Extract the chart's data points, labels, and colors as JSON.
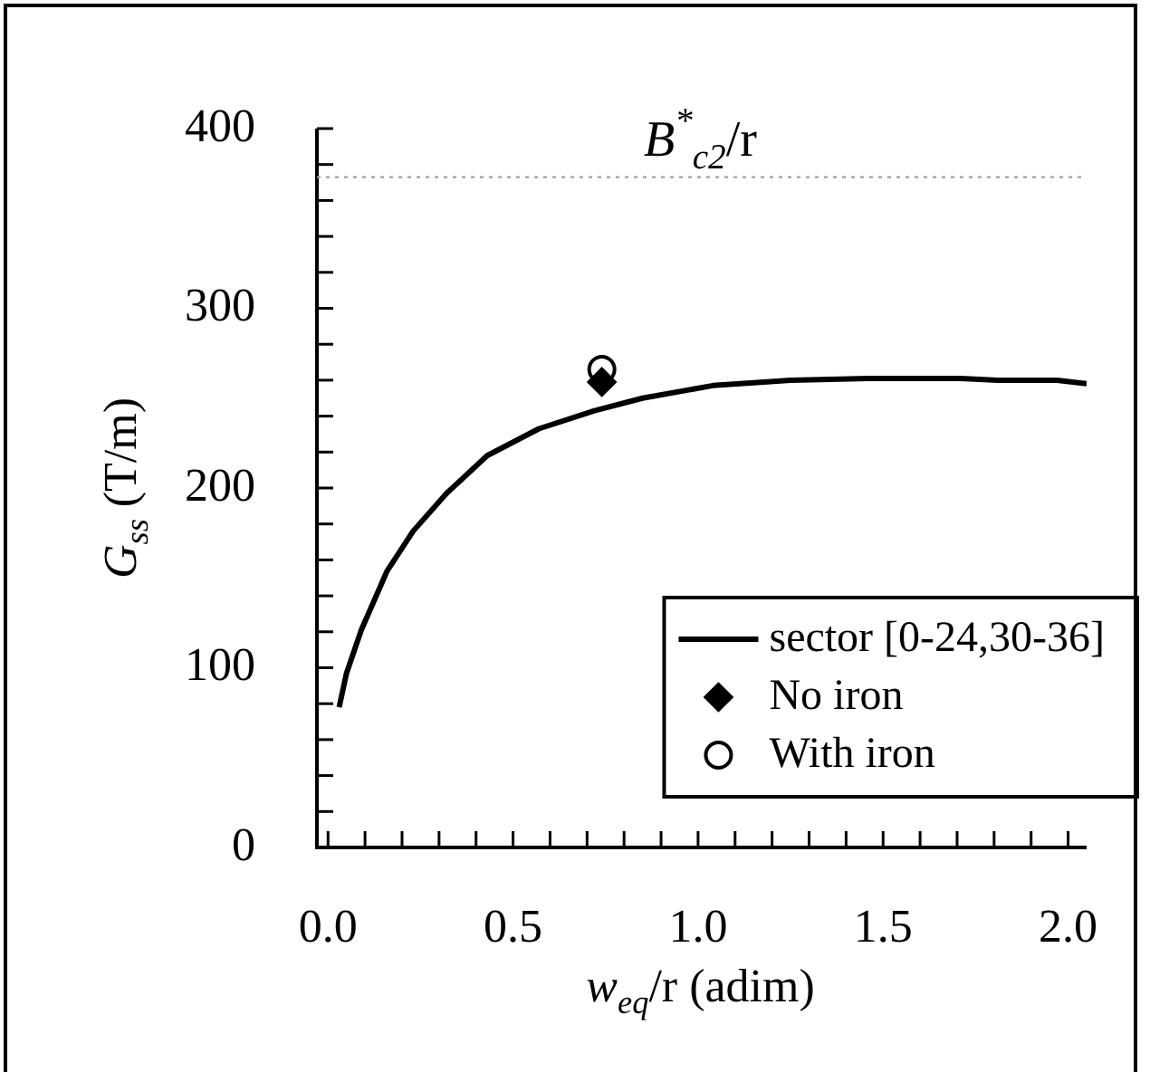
{
  "chart_data": {
    "type": "line",
    "xlabel": "w$_{eq}$/r (adim)",
    "ylabel": "G$_{ss}$ (T/m)",
    "xlim": [
      -0.03,
      2.05
    ],
    "ylim": [
      0,
      400
    ],
    "xticks": [
      {
        "value": 0,
        "label": "0.0"
      },
      {
        "value": 0.1,
        "label": null
      },
      {
        "value": 0.2,
        "label": null
      },
      {
        "value": 0.3,
        "label": null
      },
      {
        "value": 0.4,
        "label": null
      },
      {
        "value": 0.5,
        "label": "0.5"
      },
      {
        "value": 0.6,
        "label": null
      },
      {
        "value": 0.7,
        "label": null
      },
      {
        "value": 0.8,
        "label": null
      },
      {
        "value": 0.9,
        "label": null
      },
      {
        "value": 1,
        "label": "1.0"
      },
      {
        "value": 1.1,
        "label": null
      },
      {
        "value": 1.2,
        "label": null
      },
      {
        "value": 1.3,
        "label": null
      },
      {
        "value": 1.4,
        "label": null
      },
      {
        "value": 1.5,
        "label": "1.5"
      },
      {
        "value": 1.6,
        "label": null
      },
      {
        "value": 1.7,
        "label": null
      },
      {
        "value": 1.8,
        "label": null
      },
      {
        "value": 1.9,
        "label": null
      },
      {
        "value": 2,
        "label": "2.0"
      }
    ],
    "yticks": [
      0,
      {
        "value": 20,
        "label": null
      },
      {
        "value": 40,
        "label": null
      },
      {
        "value": 60,
        "label": null
      },
      {
        "value": 80,
        "label": null
      },
      100,
      {
        "value": 120,
        "label": null
      },
      {
        "value": 140,
        "label": null
      },
      {
        "value": 160,
        "label": null
      },
      {
        "value": 180,
        "label": null
      },
      200,
      {
        "value": 220,
        "label": null
      },
      {
        "value": 240,
        "label": null
      },
      {
        "value": 260,
        "label": null
      },
      {
        "value": 280,
        "label": null
      },
      300,
      {
        "value": 320,
        "label": null
      },
      {
        "value": 340,
        "label": null
      },
      {
        "value": 360,
        "label": null
      },
      {
        "value": 380,
        "label": null
      },
      400
    ],
    "grid": false,
    "legend": "bottom right",
    "ref_lines": [
      {
        "axis": "y",
        "value": 373,
        "label": "B$^{*}$$_{c2}$/r",
        "color": "#a0a0a0",
        "line_style": "dotted"
      }
    ],
    "series": [
      {
        "name": "sector [0-24,30-36]",
        "type": "line",
        "color": "#000000",
        "marker": "none",
        "x": [
          0.03,
          0.05,
          0.09,
          0.16,
          0.23,
          0.32,
          0.43,
          0.57,
          0.72,
          0.85,
          1.04,
          1.25,
          1.46,
          1.71,
          1.81,
          1.97,
          2.05
        ],
        "values": [
          78,
          97,
          121,
          154,
          176,
          197,
          218,
          233,
          243,
          250,
          257,
          260,
          261,
          261,
          260,
          260,
          258
        ]
      },
      {
        "name": "No iron",
        "type": "scatter",
        "color": "#000000",
        "marker": "diamond",
        "x": [
          0.74
        ],
        "values": [
          259
        ]
      },
      {
        "name": "With iron",
        "type": "scatter",
        "color": "#000000",
        "marker": "circle",
        "x": [
          0.74
        ],
        "values": [
          266
        ]
      }
    ]
  }
}
